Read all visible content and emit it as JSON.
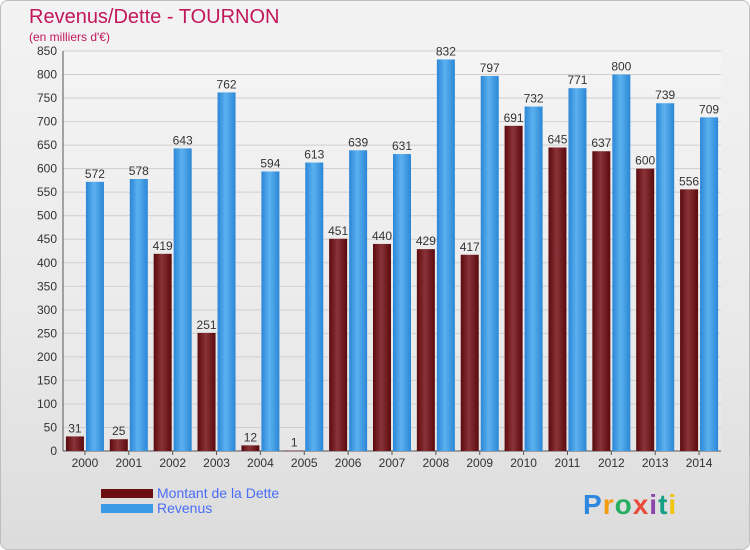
{
  "title": "Revenus/Dette - TOURNON",
  "subtitle": "(en milliers d'€)",
  "logo": {
    "text": "Proxiti",
    "letters": [
      {
        "ch": "P",
        "color": "#2e86de"
      },
      {
        "ch": "r",
        "color": "#f39c12"
      },
      {
        "ch": "o",
        "color": "#27ae60"
      },
      {
        "ch": "x",
        "color": "#e74c3c"
      },
      {
        "ch": "i",
        "color": "#8e44ad"
      },
      {
        "ch": "t",
        "color": "#16a085"
      },
      {
        "ch": "i",
        "color": "#f1c40f"
      }
    ]
  },
  "legend": [
    {
      "label": "Montant de la Dette",
      "color": "#6b0e12"
    },
    {
      "label": "Revenus",
      "color": "#3a9ae6"
    }
  ],
  "chart_data": {
    "type": "bar",
    "title": "Revenus/Dette - TOURNON",
    "ylabel": "(en milliers d'€)",
    "ylim": [
      0,
      850
    ],
    "yticks": [
      0,
      50,
      100,
      150,
      200,
      250,
      300,
      350,
      400,
      450,
      500,
      550,
      600,
      650,
      700,
      750,
      800,
      850
    ],
    "grid": true,
    "legend_position": "bottom-left",
    "categories": [
      "2000",
      "2001",
      "2002",
      "2003",
      "2004",
      "2005",
      "2006",
      "2007",
      "2008",
      "2009",
      "2010",
      "2011",
      "2012",
      "2013",
      "2014"
    ],
    "series": [
      {
        "name": "Montant de la Dette",
        "color": "#6b0e12",
        "values": [
          31,
          25,
          419,
          251,
          12,
          1,
          451,
          440,
          429,
          417,
          691,
          645,
          637,
          600,
          556
        ]
      },
      {
        "name": "Revenus",
        "color": "#3a9ae6",
        "values": [
          572,
          578,
          643,
          762,
          594,
          613,
          639,
          631,
          832,
          797,
          732,
          771,
          800,
          739,
          709
        ]
      }
    ]
  }
}
